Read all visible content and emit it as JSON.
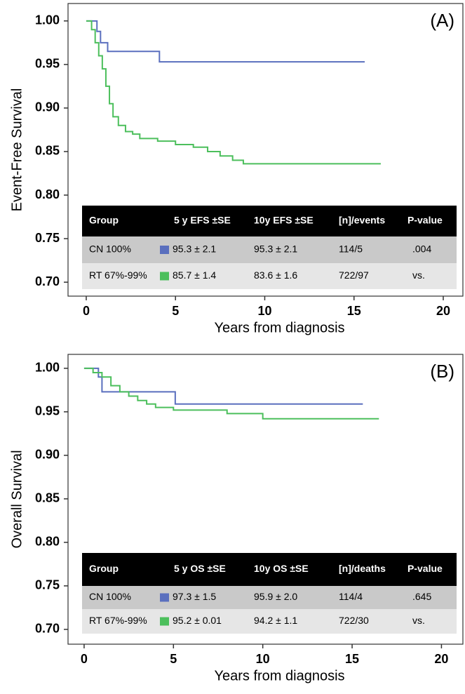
{
  "chart_data": [
    {
      "type": "line",
      "drawstyle": "steps-post",
      "panel_label": "(A)",
      "y_label": "Event-Free Survival",
      "x_label": "Years from diagnosis",
      "xlim": [
        -1.02,
        21.1
      ],
      "ylim": [
        0.684,
        1.02
      ],
      "xticks": [
        0,
        5,
        10,
        15,
        20
      ],
      "yticks": [
        {
          "value": 0.7,
          "label": "0.70"
        },
        0.75,
        {
          "value": 0.8,
          "label": "0.80"
        },
        0.85,
        {
          "value": 0.9,
          "label": "0.90"
        },
        0.95,
        {
          "value": 1,
          "label": "1.00"
        }
      ],
      "series": [
        {
          "name": "CN 100%",
          "color": "#5a6fbe",
          "x": [
            0,
            0.6,
            0.8,
            1.2,
            4.1,
            15.6
          ],
          "values": [
            1,
            0.988,
            0.975,
            0.965,
            0.953,
            0.953
          ]
        },
        {
          "name": "RT 67%-99%",
          "color": "#4cbf5c",
          "x": [
            0,
            0.3,
            0.5,
            0.7,
            0.9,
            1.1,
            1.3,
            1.5,
            1.8,
            2.2,
            2.6,
            3.0,
            4.0,
            5.0,
            6.0,
            6.8,
            7.5,
            8.2,
            8.8,
            16.5
          ],
          "values": [
            1,
            0.99,
            0.975,
            0.96,
            0.945,
            0.925,
            0.905,
            0.89,
            0.88,
            0.873,
            0.87,
            0.865,
            0.862,
            0.858,
            0.855,
            0.85,
            0.845,
            0.84,
            0.836,
            0.836
          ]
        }
      ],
      "table": {
        "columns": [
          "Group",
          "5 y EFS ±SE",
          "10y EFS ±SE",
          "[n]/events",
          "P-value"
        ],
        "rows": [
          [
            "95.3 ± 2.1",
            "95.3 ± 2.1",
            "114/5",
            ".004"
          ],
          [
            "85.7 ± 1.4",
            "83.6 ± 1.6",
            "722/97",
            "vs."
          ]
        ]
      }
    },
    {
      "type": "line",
      "drawstyle": "steps-post",
      "panel_label": "(B)",
      "y_label": "Overall Survival",
      "x_label": "Years from diagnosis",
      "xlim": [
        -0.9,
        21.2
      ],
      "ylim": [
        0.683,
        1.016
      ],
      "xticks": [
        0,
        5,
        10,
        15,
        20
      ],
      "yticks": [
        {
          "value": 0.7,
          "label": "0.70"
        },
        0.75,
        {
          "value": 0.8,
          "label": "0.80"
        },
        0.85,
        {
          "value": 0.9,
          "label": "0.90"
        },
        0.95,
        {
          "value": 1,
          "label": "1.00"
        }
      ],
      "series": [
        {
          "name": "CN 100%",
          "color": "#5a6fbe",
          "x": [
            0,
            0.8,
            1.0,
            5.1,
            15.6
          ],
          "values": [
            1,
            0.99,
            0.973,
            0.959,
            0.959
          ]
        },
        {
          "name": "RT 67%-99%",
          "color": "#4cbf5c",
          "x": [
            0,
            0.5,
            1,
            1.5,
            2,
            2.5,
            3,
            3.5,
            4,
            5,
            8,
            10,
            16.5
          ],
          "values": [
            1,
            0.995,
            0.99,
            0.98,
            0.973,
            0.968,
            0.963,
            0.959,
            0.955,
            0.952,
            0.948,
            0.942,
            0.942
          ]
        }
      ],
      "table": {
        "columns": [
          "Group",
          "5 y OS ±SE",
          "10y OS ±SE",
          "[n]/deaths",
          "P-value"
        ],
        "rows": [
          [
            "97.3 ± 1.5",
            "95.9 ± 2.0",
            "114/4",
            ".645"
          ],
          [
            "95.2 ± 0.01",
            "94.2 ± 1.1",
            "722/30",
            "vs."
          ]
        ]
      }
    }
  ]
}
